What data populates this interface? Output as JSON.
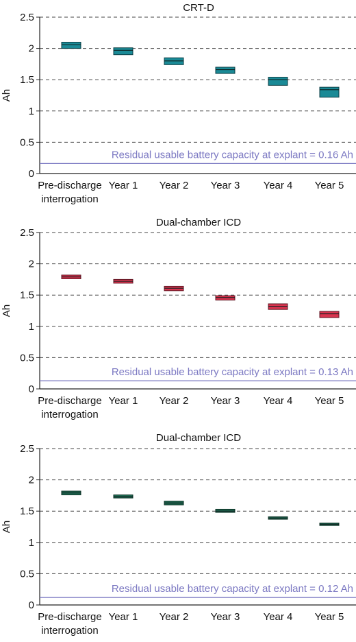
{
  "chart_data": [
    {
      "type": "box",
      "title": "CRT-D",
      "ylabel": "Ah",
      "ylim": [
        0,
        2.5
      ],
      "yticks": [
        "0",
        "0.5",
        "1",
        "1.5",
        "2",
        "2.5"
      ],
      "grid": "horizontal dashed",
      "categories": [
        "Pre-discharge interrogation",
        "Year 1",
        "Year 2",
        "Year 3",
        "Year 4",
        "Year 5"
      ],
      "category_lines": [
        [
          "Pre-discharge",
          "interrogation"
        ],
        [
          "Year 1"
        ],
        [
          "Year 2"
        ],
        [
          "Year 3"
        ],
        [
          "Year 4"
        ],
        [
          "Year 5"
        ]
      ],
      "color": "#1a8a96",
      "boxes": [
        {
          "low": 2.0,
          "median": 2.06,
          "high": 2.1
        },
        {
          "low": 1.9,
          "median": 1.97,
          "high": 2.01
        },
        {
          "low": 1.74,
          "median": 1.8,
          "high": 1.85
        },
        {
          "low": 1.6,
          "median": 1.66,
          "high": 1.7
        },
        {
          "low": 1.41,
          "median": 1.5,
          "high": 1.54
        },
        {
          "low": 1.22,
          "median": 1.34,
          "high": 1.38
        }
      ],
      "reference_value": 0.16,
      "reference_label": "Residual usable battery capacity at explant = 0.16 Ah"
    },
    {
      "type": "box",
      "title": "Dual-chamber ICD",
      "ylabel": "Ah",
      "ylim": [
        0,
        2.5
      ],
      "yticks": [
        "0",
        "0.5",
        "1",
        "1.5",
        "2",
        "2.5"
      ],
      "grid": "horizontal dashed",
      "categories": [
        "Pre-discharge interrogation",
        "Year 1",
        "Year 2",
        "Year 3",
        "Year 4",
        "Year 5"
      ],
      "category_lines": [
        [
          "Pre-discharge",
          "interrogation"
        ],
        [
          "Year 1"
        ],
        [
          "Year 2"
        ],
        [
          "Year 3"
        ],
        [
          "Year 4"
        ],
        [
          "Year 5"
        ]
      ],
      "color": "#d8344f",
      "boxes": [
        {
          "low": 1.76,
          "median": 1.79,
          "high": 1.82
        },
        {
          "low": 1.69,
          "median": 1.72,
          "high": 1.75
        },
        {
          "low": 1.57,
          "median": 1.61,
          "high": 1.64
        },
        {
          "low": 1.42,
          "median": 1.46,
          "high": 1.49
        },
        {
          "low": 1.27,
          "median": 1.32,
          "high": 1.36
        },
        {
          "low": 1.14,
          "median": 1.2,
          "high": 1.24
        }
      ],
      "reference_value": 0.13,
      "reference_label": "Residual usable battery capacity at explant = 0.13 Ah"
    },
    {
      "type": "box",
      "title": "Dual-chamber ICD",
      "ylabel": "Ah",
      "ylim": [
        0,
        2.5
      ],
      "yticks": [
        "0",
        "0.5",
        "1",
        "1.5",
        "2",
        "2.5"
      ],
      "grid": "horizontal dashed",
      "categories": [
        "Pre-discharge interrogation",
        "Year 1",
        "Year 2",
        "Year 3",
        "Year 4",
        "Year 5"
      ],
      "category_lines": [
        [
          "Pre-discharge",
          "interrogation"
        ],
        [
          "Year 1"
        ],
        [
          "Year 2"
        ],
        [
          "Year 3"
        ],
        [
          "Year 4"
        ],
        [
          "Year 5"
        ]
      ],
      "color": "#1f6b52",
      "boxes": [
        {
          "low": 1.76,
          "median": 1.79,
          "high": 1.82
        },
        {
          "low": 1.71,
          "median": 1.73,
          "high": 1.76
        },
        {
          "low": 1.6,
          "median": 1.63,
          "high": 1.66
        },
        {
          "low": 1.48,
          "median": 1.5,
          "high": 1.53
        },
        {
          "low": 1.37,
          "median": 1.39,
          "high": 1.41
        },
        {
          "low": 1.27,
          "median": 1.29,
          "high": 1.31
        }
      ],
      "reference_value": 0.12,
      "reference_label": "Residual usable battery capacity at explant = 0.12 Ah"
    }
  ],
  "reference_line_color": "#7b78c2"
}
